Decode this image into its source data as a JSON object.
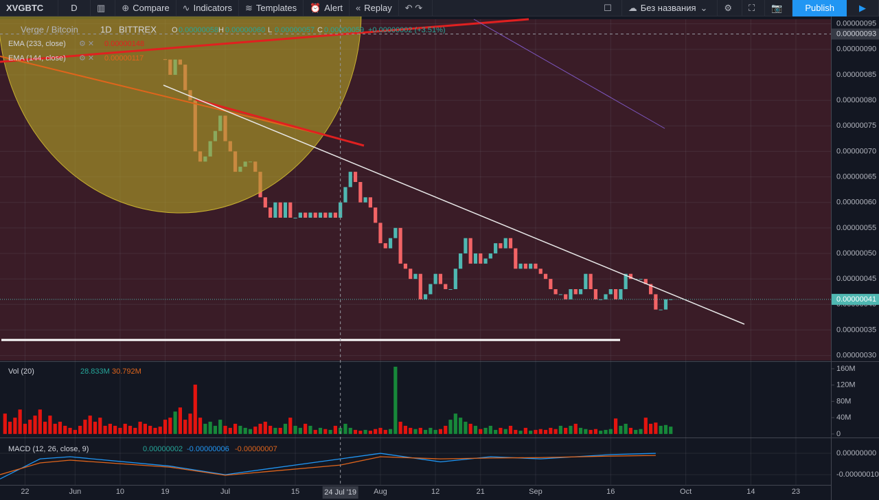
{
  "toolbar": {
    "symbol": "XVGBTC",
    "interval": "D",
    "compare": "Compare",
    "indicators": "Indicators",
    "templates": "Templates",
    "alert": "Alert",
    "replay": "Replay",
    "layout": "Без названия",
    "publish": "Publish"
  },
  "legend": {
    "title": "Verge / Bitcoin",
    "interval": "1D",
    "exchange": "BITTREX",
    "ohlc": [
      {
        "key": "O",
        "value": "0.00000058"
      },
      {
        "key": "H",
        "value": "0.00000060"
      },
      {
        "key": "L",
        "value": "0.00000057"
      },
      {
        "key": "C",
        "value": "0.00000059"
      }
    ],
    "change": "+0.00000002 (+3.51%)",
    "studies": [
      {
        "name": "EMA (233, close)",
        "value": "0.00000148"
      },
      {
        "name": "EMA (144, close)",
        "value": "0.00000117"
      }
    ]
  },
  "chart_data": [
    {
      "type": "candlestick",
      "title": "Verge / Bitcoin",
      "x": [
        "2019-05-18",
        "2019-05-19",
        "2019-05-20",
        "2019-05-21",
        "2019-05-22",
        "2019-05-23",
        "2019-05-24",
        "2019-05-25",
        "2019-05-26",
        "2019-05-27",
        "2019-05-28",
        "2019-05-29",
        "2019-05-30",
        "2019-05-31",
        "2019-06-01",
        "2019-06-02",
        "2019-06-03",
        "2019-06-04",
        "2019-06-05",
        "2019-06-06",
        "2019-06-07",
        "2019-06-08",
        "2019-06-09",
        "2019-06-10",
        "2019-06-11",
        "2019-06-12",
        "2019-06-13",
        "2019-06-14",
        "2019-06-15",
        "2019-06-16",
        "2019-06-17",
        "2019-06-18",
        "2019-06-19",
        "2019-06-20",
        "2019-06-21",
        "2019-06-22",
        "2019-06-23",
        "2019-06-24",
        "2019-06-25",
        "2019-06-26",
        "2019-06-27",
        "2019-06-28",
        "2019-06-29",
        "2019-06-30",
        "2019-07-01",
        "2019-07-02",
        "2019-07-03",
        "2019-07-04",
        "2019-07-05",
        "2019-07-06",
        "2019-07-07",
        "2019-07-08",
        "2019-07-09",
        "2019-07-10",
        "2019-07-11",
        "2019-07-12",
        "2019-07-13",
        "2019-07-14",
        "2019-07-15",
        "2019-07-16",
        "2019-07-17",
        "2019-07-18",
        "2019-07-19",
        "2019-07-20",
        "2019-07-21",
        "2019-07-22",
        "2019-07-23",
        "2019-07-24",
        "2019-07-25",
        "2019-07-26",
        "2019-07-27",
        "2019-07-28",
        "2019-07-29",
        "2019-07-30",
        "2019-07-31",
        "2019-08-01",
        "2019-08-02",
        "2019-08-03",
        "2019-08-04",
        "2019-08-05",
        "2019-08-06",
        "2019-08-07",
        "2019-08-08",
        "2019-08-09",
        "2019-08-10",
        "2019-08-11",
        "2019-08-12",
        "2019-08-13",
        "2019-08-14",
        "2019-08-15",
        "2019-08-16",
        "2019-08-17",
        "2019-08-18",
        "2019-08-19",
        "2019-08-20",
        "2019-08-21",
        "2019-08-22",
        "2019-08-23",
        "2019-08-24",
        "2019-08-25",
        "2019-08-26",
        "2019-08-27",
        "2019-08-28",
        "2019-08-29",
        "2019-08-30",
        "2019-08-31",
        "2019-09-01",
        "2019-09-02",
        "2019-09-03",
        "2019-09-04",
        "2019-09-05",
        "2019-09-06",
        "2019-09-07",
        "2019-09-08",
        "2019-09-09",
        "2019-09-10",
        "2019-09-11",
        "2019-09-12",
        "2019-09-13",
        "2019-09-14",
        "2019-09-15",
        "2019-09-16",
        "2019-09-17",
        "2019-09-18",
        "2019-09-19",
        "2019-09-20",
        "2019-09-21",
        "2019-09-22",
        "2019-09-23",
        "2019-09-24",
        "2019-09-25",
        "2019-09-26",
        "2019-09-27",
        "2019-09-28"
      ],
      "values": [
        null,
        null,
        null,
        null,
        null,
        null,
        null,
        null,
        null,
        null,
        null,
        null,
        null,
        null,
        null,
        null,
        null,
        null,
        null,
        null,
        null,
        null,
        null,
        null,
        null,
        null,
        null,
        null,
        null,
        null,
        null,
        null,
        8.8e-07,
        8.5e-07,
        8.8e-07,
        8.7e-07,
        8.2e-07,
        8e-07,
        7e-07,
        6.8e-07,
        6.9e-07,
        7.2e-07,
        7.4e-07,
        7.7e-07,
        7.2e-07,
        7e-07,
        6.6e-07,
        6.7e-07,
        6.8e-07,
        6.8e-07,
        6.6e-07,
        6.1e-07,
        5.9e-07,
        5.7e-07,
        6e-07,
        5.7e-07,
        6e-07,
        5.7e-07,
        5.7e-07,
        5.8e-07,
        5.7e-07,
        5.8e-07,
        5.7e-07,
        5.8e-07,
        5.7e-07,
        5.8e-07,
        5.7e-07,
        6e-07,
        6.3e-07,
        6.6e-07,
        6.4e-07,
        6e-07,
        6.1e-07,
        5.9e-07,
        5.6e-07,
        5.2e-07,
        5.1e-07,
        5.3e-07,
        5.5e-07,
        4.8e-07,
        4.7e-07,
        4.5e-07,
        4.6e-07,
        4.1e-07,
        4.2e-07,
        4.4e-07,
        4.6e-07,
        4.4e-07,
        4.3e-07,
        4.3e-07,
        4.7e-07,
        5e-07,
        5.3e-07,
        4.8e-07,
        5e-07,
        4.8e-07,
        4.9e-07,
        5e-07,
        5.2e-07,
        5.1e-07,
        5.3e-07,
        5.1e-07,
        4.7e-07,
        4.8e-07,
        4.7e-07,
        4.8e-07,
        4.7e-07,
        4.6e-07,
        4.5e-07,
        4.3e-07,
        4.2e-07,
        4.2e-07,
        4.1e-07,
        4.3e-07,
        4.2e-07,
        4.3e-07,
        4.6e-07,
        4.3e-07,
        4.1e-07,
        4.1e-07,
        4.2e-07,
        4.3e-07,
        4.1e-07,
        4.3e-07,
        4.6e-07,
        4.5e-07,
        4.5e-07,
        4.5e-07,
        4.4e-07,
        4.2e-07,
        3.9e-07,
        3.9e-07,
        4.1e-07,
        4.1e-07
      ],
      "volume": [
        50000000.0,
        30000000.0,
        40000000.0,
        60000000.0,
        25000000.0,
        35000000.0,
        45000000.0,
        60000000.0,
        30000000.0,
        45000000.0,
        25000000.0,
        30000000.0,
        20000000.0,
        15000000.0,
        10000000.0,
        20000000.0,
        35000000.0,
        45000000.0,
        30000000.0,
        40000000.0,
        20000000.0,
        25000000.0,
        20000000.0,
        15000000.0,
        25000000.0,
        20000000.0,
        15000000.0,
        30000000.0,
        25000000.0,
        20000000.0,
        15000000.0,
        18000000.0,
        35000000.0,
        40000000.0,
        55000000.0,
        65000000.0,
        35000000.0,
        50000000.0,
        121000000.0,
        40000000.0,
        25000000.0,
        30000000.0,
        20000000.0,
        35000000.0,
        20000000.0,
        15000000.0,
        25000000.0,
        20000000.0,
        15000000.0,
        12000000.0,
        18000000.0,
        25000000.0,
        30000000.0,
        20000000.0,
        15000000.0,
        15000000.0,
        25000000.0,
        40000000.0,
        20000000.0,
        15000000.0,
        25000000.0,
        20000000.0,
        10000000.0,
        15000000.0,
        12000000.0,
        10000000.0,
        20000000.0,
        15000000.0,
        25000000.0,
        15000000.0,
        10000000.0,
        8000000.0,
        10000000.0,
        8000000.0,
        12000000.0,
        15000000.0,
        10000000.0,
        12000000.0,
        165000000.0,
        30000000.0,
        20000000.0,
        15000000.0,
        12000000.0,
        15000000.0,
        10000000.0,
        15000000.0,
        10000000.0,
        12000000.0,
        20000000.0,
        35000000.0,
        50000000.0,
        40000000.0,
        30000000.0,
        25000000.0,
        20000000.0,
        12000000.0,
        15000000.0,
        20000000.0,
        10000000.0,
        15000000.0,
        12000000.0,
        20000000.0,
        10000000.0,
        8000000.0,
        15000000.0,
        8000000.0,
        10000000.0,
        12000000.0,
        10000000.0,
        15000000.0,
        12000000.0,
        20000000.0,
        15000000.0,
        20000000.0,
        25000000.0,
        15000000.0,
        12000000.0,
        10000000.0,
        12000000.0,
        8000000.0,
        10000000.0,
        12000000.0,
        38000000.0,
        20000000.0,
        25000000.0,
        15000000.0,
        10000000.0,
        12000000.0,
        40000000.0,
        25000000.0,
        28000000.0,
        20000000.0,
        22000000.0,
        18000000.0
      ],
      "color_up": "#4fb8b2",
      "color_down": "#f26466",
      "volume_color_up": "#17883a",
      "volume_color_down": "#e3140f",
      "xlim": [
        "2019-05-17",
        "2019-10-30"
      ],
      "xticks": [
        {
          "value": "2019-05-22",
          "label": "22"
        },
        {
          "value": "2019-06-01",
          "label": "Jun"
        },
        {
          "value": "2019-06-10",
          "label": "10"
        },
        {
          "value": "2019-06-19",
          "label": "19"
        },
        {
          "value": "2019-07-01",
          "label": "Jul"
        },
        {
          "value": "2019-07-15",
          "label": "15"
        },
        {
          "value": "2019-08-01",
          "label": "Aug"
        },
        {
          "value": "2019-08-12",
          "label": "12"
        },
        {
          "value": "2019-08-21",
          "label": "21"
        },
        {
          "value": "2019-09-01",
          "label": "Sep"
        },
        {
          "value": "2019-09-16",
          "label": "16"
        },
        {
          "value": "2019-10-01",
          "label": "Oct"
        },
        {
          "value": "2019-10-14",
          "label": "14"
        },
        {
          "value": "2019-10-23",
          "label": "23"
        }
      ],
      "ylim": [
        2.9e-07,
        9.59e-07
      ],
      "yticks": [
        {
          "value": 3e-07,
          "label": "0.00000030"
        },
        {
          "value": 3.5e-07,
          "label": "0.00000035"
        },
        {
          "value": 4e-07,
          "label": "0.00000040"
        },
        {
          "value": 4.5e-07,
          "label": "0.00000045"
        },
        {
          "value": 5e-07,
          "label": "0.00000050"
        },
        {
          "value": 5.5e-07,
          "label": "0.00000055"
        },
        {
          "value": 6e-07,
          "label": "0.00000060"
        },
        {
          "value": 6.5e-07,
          "label": "0.00000065"
        },
        {
          "value": 7e-07,
          "label": "0.00000070"
        },
        {
          "value": 7.5e-07,
          "label": "0.00000075"
        },
        {
          "value": 8e-07,
          "label": "0.00000080"
        },
        {
          "value": 8.5e-07,
          "label": "0.00000085"
        },
        {
          "value": 9e-07,
          "label": "0.00000090"
        },
        {
          "value": 9.5e-07,
          "label": "0.00000095"
        }
      ],
      "grid": true,
      "last_price": {
        "value": 4.1e-07,
        "label": "0.00000041"
      },
      "crosshair": {
        "x": {
          "value": "2019-07-24",
          "label": "24 Jul '19"
        },
        "y": {
          "value": 9.3e-07,
          "label": "0.00000093"
        }
      },
      "volume_title": "Vol (20)",
      "volume_legend": [
        "28.833M",
        "30.792M"
      ],
      "volume_ylim": [
        -7000000,
        175000000
      ],
      "volume_yticks": [
        0,
        {
          "value": 40000000,
          "label": "40M"
        },
        {
          "value": 80000000,
          "label": "80M"
        },
        {
          "value": 120000000,
          "label": "120M"
        },
        {
          "value": 160000000,
          "label": "160M"
        }
      ]
    },
    {
      "type": "line",
      "title": "MACD (12, 26, close, 9)",
      "value_labels": [
        "0.00000002",
        "-0.00000006",
        "-0.00000007"
      ],
      "x": [
        "2019-05-17",
        "2019-05-25",
        "2019-05-31",
        "2019-06-20",
        "2019-07-01",
        "2019-07-24",
        "2019-08-01",
        "2019-08-13",
        "2019-08-23",
        "2019-09-02",
        "2019-09-16",
        "2019-09-25"
      ],
      "series": [
        {
          "color": "#2196f3",
          "values": [
            -1.2e-07,
            -2.6e-08,
            -1.6e-08,
            -6e-08,
            -1e-07,
            -2.6e-08,
            0,
            -4e-08,
            -1.6e-08,
            -2.6e-08,
            -6e-09,
            0
          ]
        },
        {
          "color": "#e0651c",
          "values": [
            -1e-07,
            -4.5e-08,
            -3.2e-08,
            -6.5e-08,
            -1.03e-07,
            -5.5e-08,
            -1.6e-08,
            -2.6e-08,
            -2.2e-08,
            -2e-08,
            -1.3e-08,
            -1e-08
          ]
        }
      ],
      "ylim": [
        -1.48e-07,
        7.1e-08
      ],
      "yticks": [
        {
          "value": 0,
          "label": "0.00000000"
        },
        {
          "value": -1e-07,
          "label": "-0.00000010"
        }
      ]
    }
  ]
}
